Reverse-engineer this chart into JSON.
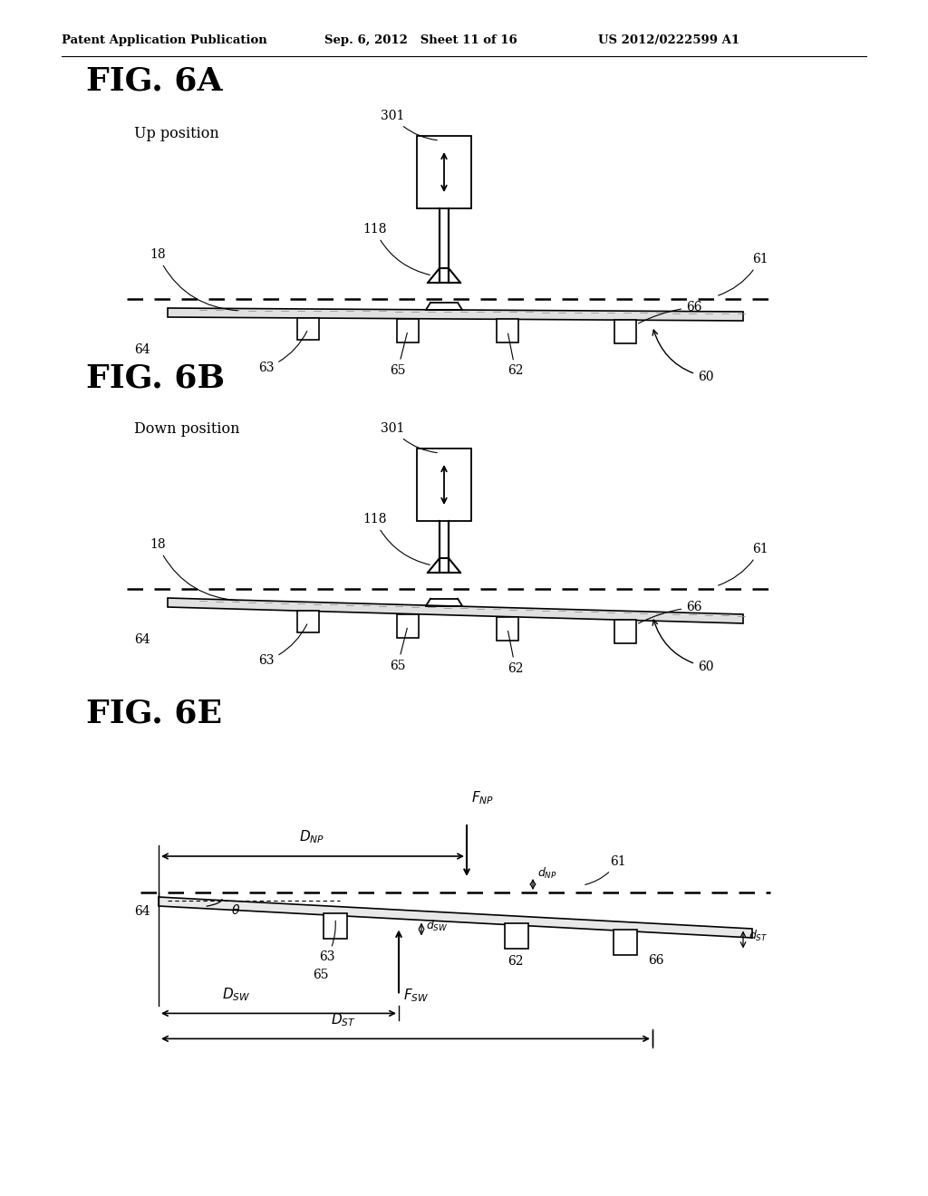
{
  "header_left": "Patent Application Publication",
  "header_middle": "Sep. 6, 2012   Sheet 11 of 16",
  "header_right": "US 2012/0222599 A1",
  "fig6a_title": "FIG. 6A",
  "fig6a_label": "Up position",
  "fig6b_title": "FIG. 6B",
  "fig6b_label": "Down position",
  "fig6e_title": "FIG. 6E",
  "bg_color": "#ffffff",
  "line_color": "#000000"
}
